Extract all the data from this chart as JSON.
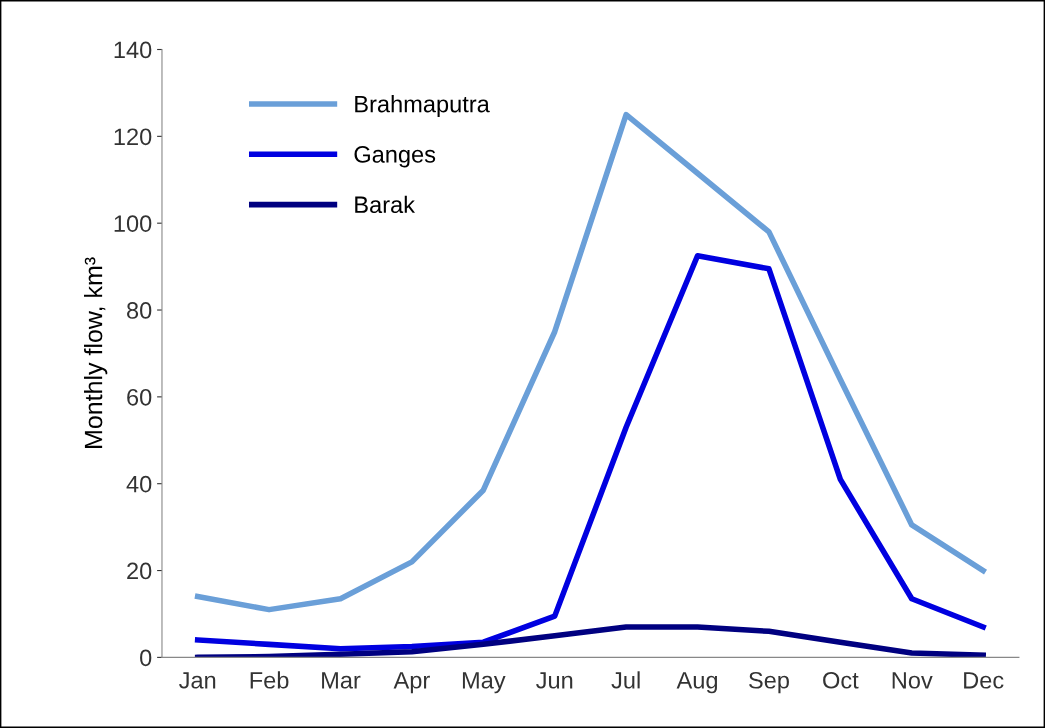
{
  "chart_data": {
    "type": "line",
    "ylabel": "Monthly flow, km³",
    "categories": [
      "Jan",
      "Feb",
      "Mar",
      "Apr",
      "May",
      "Jun",
      "Jul",
      "Aug",
      "Sep",
      "Oct",
      "Nov",
      "Dec"
    ],
    "series": [
      {
        "name": "Brahmaputra",
        "color": "#6a9fd8",
        "values": [
          14,
          11,
          13.5,
          22,
          38.5,
          75,
          125,
          111.5,
          98,
          64,
          30.5,
          20
        ]
      },
      {
        "name": "Ganges",
        "color": "#0000e0",
        "values": [
          4,
          3,
          2,
          2.5,
          3.5,
          9.5,
          53,
          92.5,
          89.5,
          41,
          13.5,
          7
        ]
      },
      {
        "name": "Barak",
        "color": "#000080",
        "values": [
          0,
          0.2,
          0.7,
          1.3,
          3,
          5,
          7,
          7,
          6,
          3.5,
          1,
          0.5
        ]
      }
    ],
    "ylim": [
      0,
      140
    ],
    "yticks": [
      0,
      20,
      40,
      60,
      80,
      100,
      120,
      140
    ],
    "grid": false,
    "legend": "top left",
    "marker": "none",
    "line_style": "solid"
  }
}
